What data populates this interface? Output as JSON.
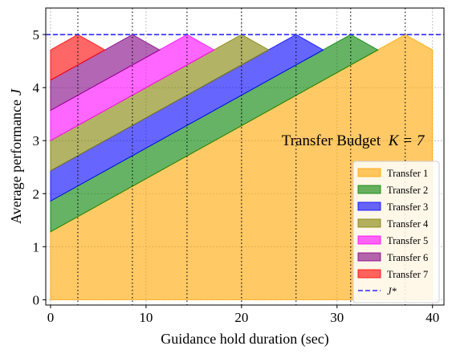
{
  "chart_data": {
    "type": "area",
    "xlabel": "Guidance hold duration (sec)",
    "ylabel": "Average performance",
    "ylabel_symbol": "J",
    "xlim": [
      -0.5,
      41.2
    ],
    "ylim": [
      -0.1,
      5.5
    ],
    "xticks": [
      0,
      10,
      20,
      30,
      40
    ],
    "yticks": [
      0,
      1,
      2,
      3,
      4,
      5
    ],
    "grid": true,
    "legend_position": "lower-right",
    "annotation": {
      "text": "Transfer Budget",
      "math": "K = 7",
      "x": 24.2,
      "y": 3.0
    },
    "reference_line": {
      "name": "J*",
      "y": 5,
      "style": "dashed",
      "color": "#2b2bff"
    },
    "vlines": [
      2.86,
      8.57,
      14.29,
      20.0,
      25.71,
      31.43,
      37.14
    ],
    "series": [
      {
        "name": "Transfer 1",
        "color": "#ffa500",
        "lower": [
          [
            0,
            0
          ],
          [
            40,
            0
          ]
        ],
        "upper": [
          [
            0,
            1.28
          ],
          [
            37.14,
            5.0
          ],
          [
            40,
            4.71
          ]
        ]
      },
      {
        "name": "Transfer 2",
        "color": "#008000",
        "lower": [
          [
            0,
            1.28
          ],
          [
            34.29,
            4.71
          ]
        ],
        "upper": [
          [
            0,
            1.86
          ],
          [
            31.43,
            5.0
          ],
          [
            34.29,
            4.71
          ]
        ]
      },
      {
        "name": "Transfer 3",
        "color": "#0000ff",
        "lower": [
          [
            0,
            1.86
          ],
          [
            28.57,
            4.71
          ]
        ],
        "upper": [
          [
            0,
            2.43
          ],
          [
            25.71,
            5.0
          ],
          [
            28.57,
            4.71
          ]
        ]
      },
      {
        "name": "Transfer 4",
        "color": "#808000",
        "lower": [
          [
            0,
            2.43
          ],
          [
            22.86,
            4.71
          ]
        ],
        "upper": [
          [
            0,
            3.0
          ],
          [
            20.0,
            5.0
          ],
          [
            22.86,
            4.71
          ]
        ]
      },
      {
        "name": "Transfer 5",
        "color": "#ff00ff",
        "lower": [
          [
            0,
            3.0
          ],
          [
            17.14,
            4.71
          ]
        ],
        "upper": [
          [
            0,
            3.57
          ],
          [
            14.29,
            5.0
          ],
          [
            17.14,
            4.71
          ]
        ]
      },
      {
        "name": "Transfer 6",
        "color": "#800080",
        "lower": [
          [
            0,
            3.57
          ],
          [
            11.43,
            4.71
          ]
        ],
        "upper": [
          [
            0,
            4.14
          ],
          [
            8.57,
            5.0
          ],
          [
            11.43,
            4.71
          ]
        ]
      },
      {
        "name": "Transfer 7",
        "color": "#ff0000",
        "lower": [
          [
            0,
            4.14
          ],
          [
            5.71,
            4.71
          ]
        ],
        "upper": [
          [
            0,
            4.71
          ],
          [
            2.86,
            5.0
          ],
          [
            5.71,
            4.71
          ]
        ]
      }
    ]
  }
}
